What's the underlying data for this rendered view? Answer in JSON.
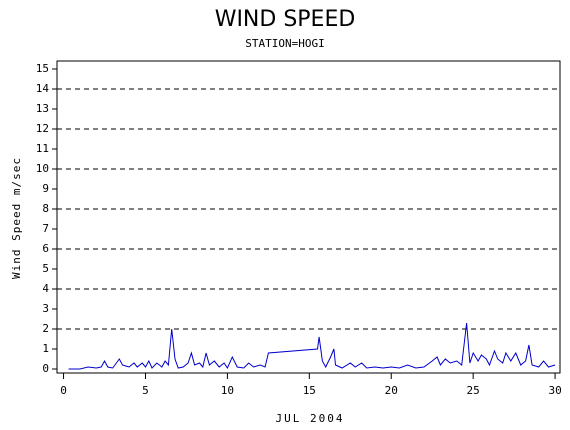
{
  "chart_data": {
    "type": "line",
    "title": "WIND SPEED",
    "subtitle": "STATION=HOGI",
    "x_label": "JUL 2004",
    "y_label": "Wind Speed m/sec",
    "xlim": [
      -0.4,
      30.3
    ],
    "ylim": [
      -0.2,
      15.4
    ],
    "xticks": [
      0,
      5,
      10,
      15,
      20,
      25,
      30
    ],
    "yticks": [
      0,
      1,
      2,
      3,
      4,
      5,
      6,
      7,
      8,
      9,
      10,
      11,
      12,
      13,
      14,
      15
    ],
    "grid_lines": [
      2,
      4,
      6,
      8,
      10,
      12,
      14
    ],
    "series": [
      {
        "color": "#0000cc",
        "x": [
          0.3,
          1,
          1.5,
          2,
          2.3,
          2.5,
          2.7,
          3,
          3.4,
          3.6,
          4,
          4.3,
          4.5,
          4.8,
          5,
          5.2,
          5.4,
          5.7,
          6,
          6.2,
          6.4,
          6.6,
          6.8,
          7,
          7.3,
          7.6,
          7.8,
          8,
          8.3,
          8.5,
          8.7,
          8.9,
          9.2,
          9.5,
          9.8,
          10,
          10.3,
          10.6,
          11,
          11.3,
          11.6,
          12,
          12.3,
          12.5,
          15.5,
          15.6,
          15.8,
          16,
          16.3,
          16.5,
          16.6,
          17,
          17.5,
          17.8,
          18.2,
          18.5,
          19,
          19.5,
          20,
          20.5,
          21,
          21.5,
          22,
          22.5,
          22.8,
          23,
          23.3,
          23.6,
          24,
          24.3,
          24.6,
          24.8,
          25,
          25.3,
          25.5,
          25.8,
          26,
          26.3,
          26.5,
          26.8,
          27,
          27.3,
          27.6,
          27.9,
          28.2,
          28.4,
          28.6,
          29,
          29.3,
          29.6,
          30
        ],
        "values": [
          0,
          0,
          0.1,
          0.05,
          0.1,
          0.4,
          0.1,
          0.05,
          0.5,
          0.2,
          0.1,
          0.3,
          0.1,
          0.3,
          0.1,
          0.4,
          0.05,
          0.3,
          0.1,
          0.4,
          0.2,
          2.0,
          0.5,
          0.05,
          0.1,
          0.3,
          0.8,
          0.2,
          0.3,
          0.1,
          0.8,
          0.2,
          0.4,
          0.1,
          0.3,
          0.05,
          0.6,
          0.1,
          0.05,
          0.3,
          0.1,
          0.2,
          0.1,
          0.8,
          1.0,
          1.6,
          0.4,
          0.1,
          0.6,
          1.0,
          0.2,
          0.05,
          0.3,
          0.1,
          0.3,
          0.05,
          0.1,
          0.05,
          0.1,
          0.05,
          0.2,
          0.05,
          0.1,
          0.4,
          0.6,
          0.2,
          0.5,
          0.3,
          0.4,
          0.2,
          2.3,
          0.3,
          0.8,
          0.4,
          0.7,
          0.5,
          0.2,
          0.9,
          0.5,
          0.3,
          0.8,
          0.4,
          0.8,
          0.2,
          0.4,
          1.2,
          0.2,
          0.1,
          0.4,
          0.1,
          0.2
        ]
      }
    ]
  }
}
